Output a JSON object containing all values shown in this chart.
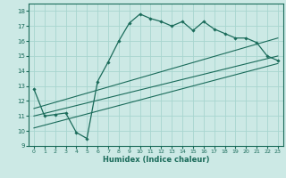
{
  "title": "",
  "xlabel": "Humidex (Indice chaleur)",
  "bg_color": "#cce9e5",
  "grid_color": "#a8d5cf",
  "line_color": "#1a6b5a",
  "xlim": [
    -0.5,
    23.5
  ],
  "ylim": [
    9,
    18.5
  ],
  "xticks": [
    0,
    1,
    2,
    3,
    4,
    5,
    6,
    7,
    8,
    9,
    10,
    11,
    12,
    13,
    14,
    15,
    16,
    17,
    18,
    19,
    20,
    21,
    22,
    23
  ],
  "yticks": [
    9,
    10,
    11,
    12,
    13,
    14,
    15,
    16,
    17,
    18
  ],
  "main_series_x": [
    0,
    1,
    2,
    3,
    4,
    5,
    6,
    7,
    8,
    9,
    10,
    11,
    12,
    13,
    14,
    15,
    16,
    17,
    18,
    19,
    20,
    21,
    22,
    23
  ],
  "main_series_y": [
    12.8,
    11.0,
    11.1,
    11.2,
    9.9,
    9.5,
    13.3,
    14.6,
    16.0,
    17.2,
    17.8,
    17.5,
    17.3,
    17.0,
    17.3,
    16.7,
    17.3,
    16.8,
    16.5,
    16.2,
    16.2,
    15.9,
    15.0,
    14.7
  ],
  "line1_x": [
    0,
    23
  ],
  "line1_y": [
    11.5,
    16.2
  ],
  "line2_x": [
    0,
    23
  ],
  "line2_y": [
    11.0,
    15.0
  ],
  "line3_x": [
    0,
    23
  ],
  "line3_y": [
    10.2,
    14.5
  ]
}
